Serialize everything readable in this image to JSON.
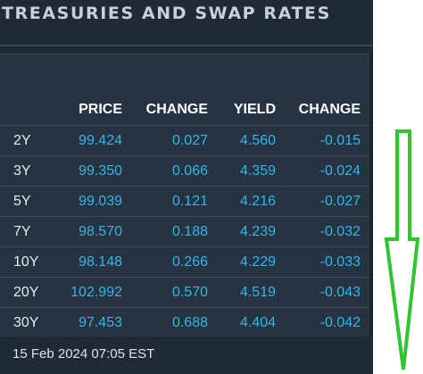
{
  "title": "TREASURIES AND SWAP RATES",
  "columns": {
    "price": "PRICE",
    "change": "CHANGE",
    "yield": "YIELD",
    "yield_change": "CHANGE"
  },
  "rows": [
    {
      "tenor": "2Y",
      "price": "99.424",
      "change": "0.027",
      "yield": "4.560",
      "yield_change": "-0.015"
    },
    {
      "tenor": "3Y",
      "price": "99.350",
      "change": "0.066",
      "yield": "4.359",
      "yield_change": "-0.024"
    },
    {
      "tenor": "5Y",
      "price": "99.039",
      "change": "0.121",
      "yield": "4.216",
      "yield_change": "-0.027"
    },
    {
      "tenor": "7Y",
      "price": "98.570",
      "change": "0.188",
      "yield": "4.239",
      "yield_change": "-0.032"
    },
    {
      "tenor": "10Y",
      "price": "98.148",
      "change": "0.266",
      "yield": "4.229",
      "yield_change": "-0.033"
    },
    {
      "tenor": "20Y",
      "price": "102.992",
      "change": "0.570",
      "yield": "4.519",
      "yield_change": "-0.043"
    },
    {
      "tenor": "30Y",
      "price": "97.453",
      "change": "0.688",
      "yield": "4.404",
      "yield_change": "-0.042"
    }
  ],
  "footer": {
    "timestamp": "15 Feb 2024 07:05 EST"
  },
  "colors": {
    "panel_bg": "#1f2a35",
    "table_bg": "#263340",
    "value_text": "#34b6ea",
    "annotation_arrow": "#2fc52f"
  },
  "annotation": {
    "icon": "down-arrow-icon"
  }
}
